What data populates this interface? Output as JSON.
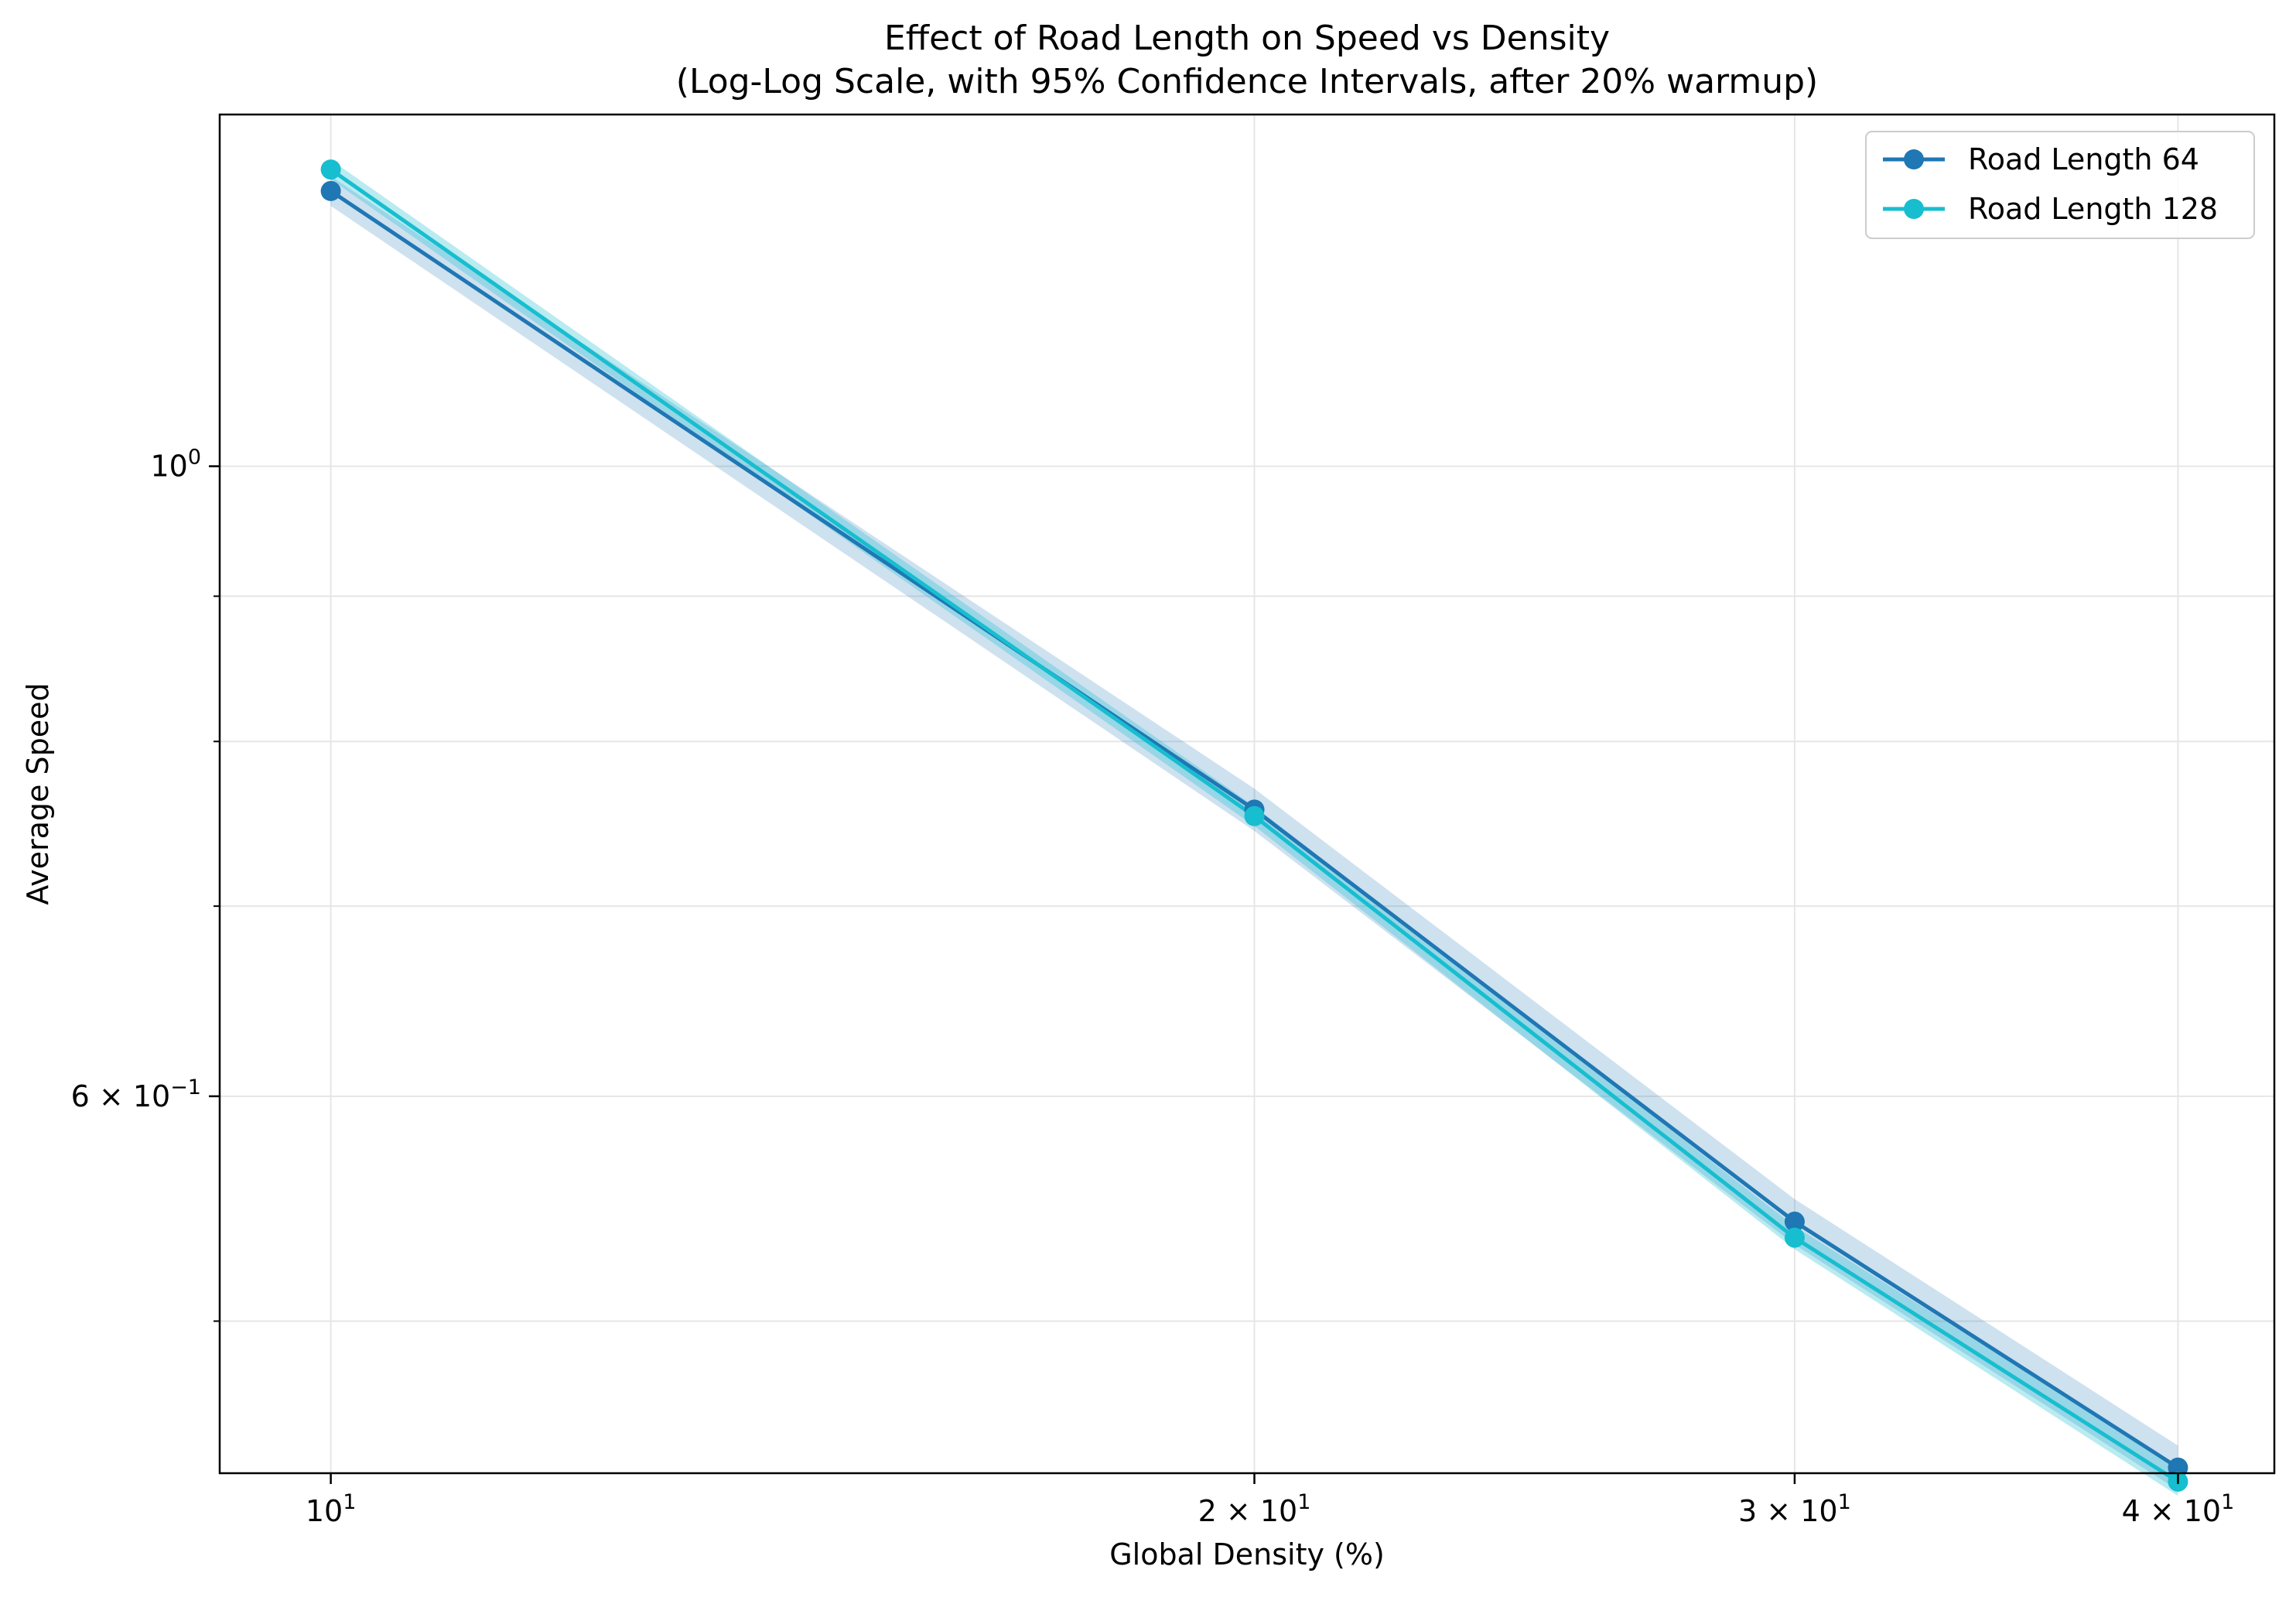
{
  "chart_data": {
    "type": "line",
    "title": "Effect of Road Length on Speed vs Density",
    "subtitle": "(Log-Log Scale, with 95% Confidence Intervals, after 20% warmup)",
    "xlabel": "Global Density (%)",
    "ylabel": "Average Speed",
    "xscale": "log",
    "yscale": "log",
    "xlim": [
      9.2,
      43.0
    ],
    "ylim": [
      0.442,
      1.33
    ],
    "grid": true,
    "legend_position": "top-right",
    "x": [
      10,
      20,
      30,
      40
    ],
    "x_ticks": [
      {
        "value": 10,
        "base": "10",
        "exp": "1"
      },
      {
        "value": 20,
        "base": "2 × 10",
        "exp": "1"
      },
      {
        "value": 30,
        "base": "3 × 10",
        "exp": "1"
      },
      {
        "value": 40,
        "base": "4 × 10",
        "exp": "1"
      }
    ],
    "y_major_ticks": [
      {
        "value": 1.0,
        "base": "10",
        "exp": "0"
      },
      {
        "value": 0.6,
        "base": "6 × 10",
        "exp": "−1"
      }
    ],
    "y_minor_ticks": [
      0.5,
      0.7,
      0.8,
      0.9
    ],
    "series": [
      {
        "name": "Road Length 64",
        "color": "#1f77b4",
        "band_color": "#1f77b4",
        "values": [
          1.25,
          0.757,
          0.542,
          0.444
        ],
        "ci_lower": [
          1.235,
          0.744,
          0.532,
          0.436
        ],
        "ci_upper": [
          1.265,
          0.77,
          0.552,
          0.452
        ]
      },
      {
        "name": "Road Length 128",
        "color": "#17becf",
        "band_color": "#17becf",
        "values": [
          1.272,
          0.753,
          0.535,
          0.439
        ],
        "ci_lower": [
          1.262,
          0.747,
          0.53,
          0.434
        ],
        "ci_upper": [
          1.282,
          0.759,
          0.54,
          0.444
        ]
      }
    ]
  }
}
